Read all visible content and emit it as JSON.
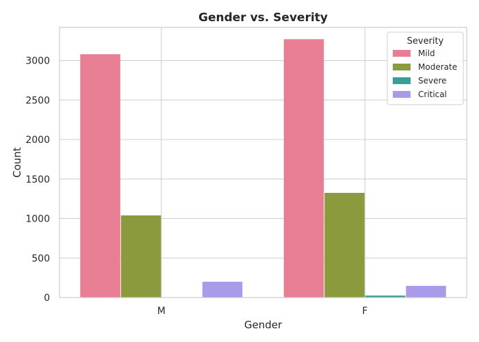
{
  "chart_data": {
    "type": "bar",
    "title": "Gender vs. Severity",
    "xlabel": "Gender",
    "ylabel": "Count",
    "categories": [
      "M",
      "F"
    ],
    "ylim": [
      0,
      3420
    ],
    "yticks": [
      0,
      500,
      1000,
      1500,
      2000,
      2500,
      3000
    ],
    "grid": true,
    "legend": {
      "title": "Severity",
      "position": "top-right"
    },
    "series": [
      {
        "name": "Mild",
        "color": "#e87e93",
        "values": [
          3080,
          3270
        ]
      },
      {
        "name": "Moderate",
        "color": "#8b9a3d",
        "values": [
          1040,
          1325
        ]
      },
      {
        "name": "Severe",
        "color": "#3a9e95",
        "values": [
          3,
          25
        ]
      },
      {
        "name": "Critical",
        "color": "#a99aea",
        "values": [
          200,
          148
        ]
      }
    ]
  }
}
